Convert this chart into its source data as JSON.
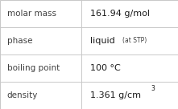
{
  "rows": [
    {
      "label": "molar mass",
      "value": "161.94 g/mol",
      "superscript": null,
      "small_text": null
    },
    {
      "label": "phase",
      "value": "liquid",
      "superscript": null,
      "small_text": "(at STP)"
    },
    {
      "label": "boiling point",
      "value": "100 °C",
      "superscript": null,
      "small_text": null
    },
    {
      "label": "density",
      "value": "1.361 g/cm",
      "superscript": "3",
      "small_text": null
    }
  ],
  "bg_color": "#f8f8f8",
  "cell_bg": "#ffffff",
  "border_color": "#c8c8c8",
  "label_color": "#404040",
  "value_color": "#1a1a1a",
  "label_fontsize": 7.5,
  "value_fontsize": 8.0,
  "small_fontsize": 5.5,
  "super_fontsize": 5.5,
  "col_split": 0.455
}
